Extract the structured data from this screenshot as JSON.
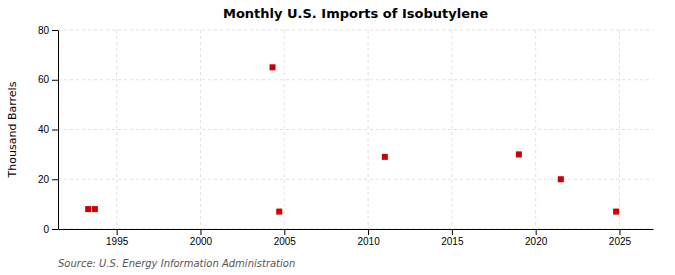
{
  "chart_data": {
    "type": "scatter",
    "title": "Monthly U.S. Imports of Isobutylene",
    "ylabel": "Thousand Barrels",
    "source": "Source: U.S. Energy Information Administration",
    "x": [
      1993.3,
      1993.7,
      2004.3,
      2004.7,
      2011.0,
      2019.0,
      2021.5,
      2024.8
    ],
    "values": [
      8,
      8,
      65,
      7,
      29,
      30,
      20,
      7
    ],
    "color": "#cc0000",
    "marker": "square",
    "xlim": [
      1991.5,
      2027
    ],
    "xticks": [
      1995,
      2000,
      2005,
      2010,
      2015,
      2020,
      2025
    ],
    "ylim": [
      0,
      80
    ],
    "yticks": [
      0,
      20,
      40,
      60,
      80
    ],
    "grid": true
  }
}
